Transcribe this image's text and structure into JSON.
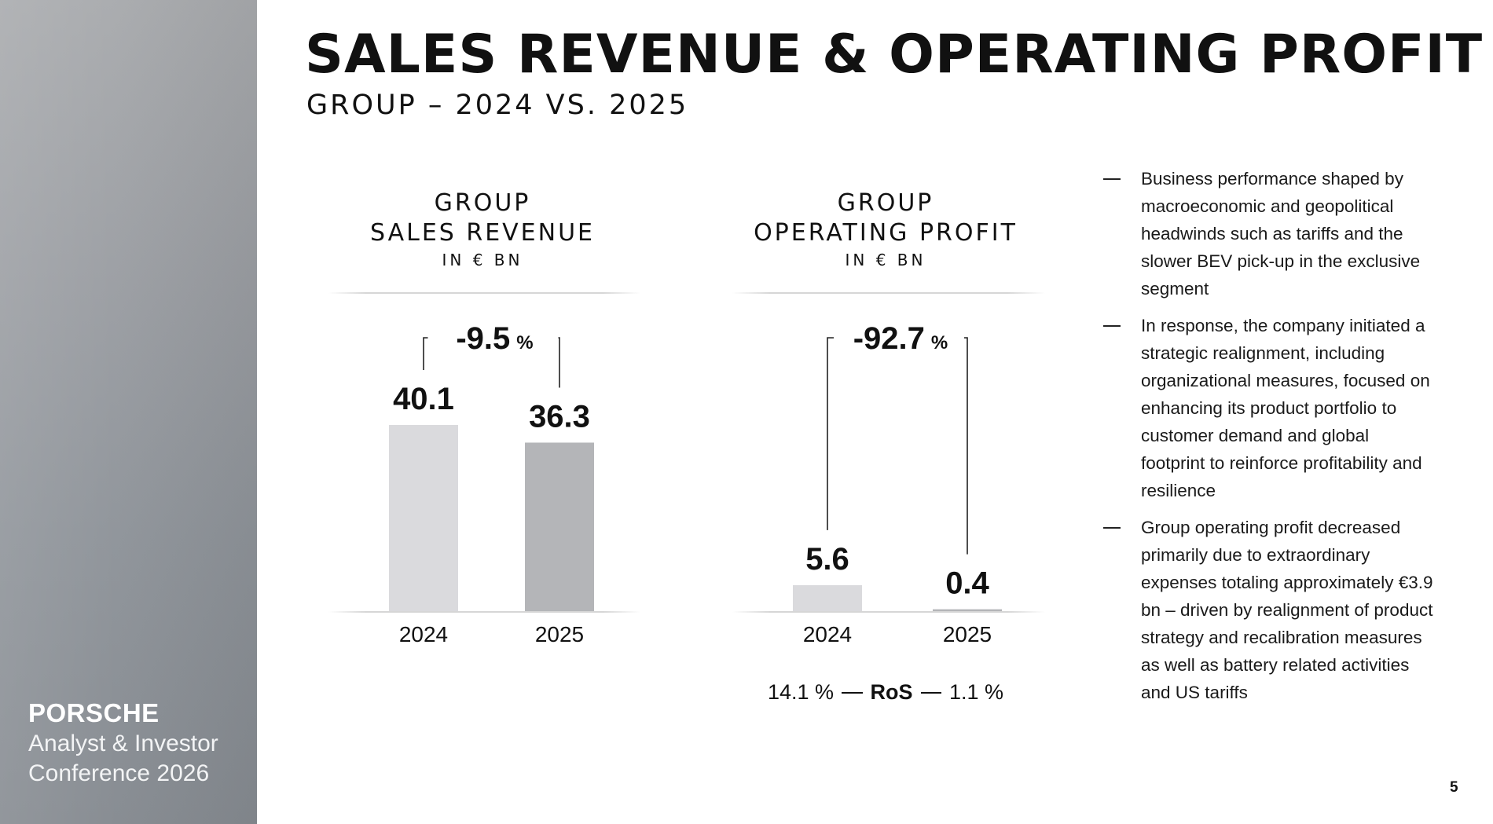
{
  "slide": {
    "title": "SALES REVENUE & OPERATING PROFIT",
    "subtitle": "GROUP – 2024 VS. 2025",
    "page_number": "5"
  },
  "brand": {
    "name": "PORSCHE",
    "event_line1": "Analyst & Investor",
    "event_line2": "Conference 2026"
  },
  "chart_data": [
    {
      "type": "bar",
      "title_line1": "GROUP",
      "title_line2": "SALES REVENUE",
      "unit": "IN € BN",
      "categories": [
        "2024",
        "2025"
      ],
      "values": [
        40.1,
        36.3
      ],
      "value_labels": [
        "40.1",
        "36.3"
      ],
      "change": "-9.5",
      "change_unit": "%",
      "bar_colors": [
        "#dadadd",
        "#b4b5b8"
      ],
      "grid": false
    },
    {
      "type": "bar",
      "title_line1": "GROUP",
      "title_line2": "OPERATING PROFIT",
      "unit": "IN € BN",
      "categories": [
        "2024",
        "2025"
      ],
      "values": [
        5.6,
        0.4
      ],
      "value_labels": [
        "5.6",
        "0.4"
      ],
      "change": "-92.7",
      "change_unit": "%",
      "bar_colors": [
        "#dadadd",
        "#b4b5b8"
      ],
      "grid": false,
      "ros": {
        "left": "14.1 %",
        "label": "RoS",
        "right": "1.1 %"
      }
    }
  ],
  "bullets": [
    "Business performance shaped by macroeconomic and geopolitical headwinds such as tariffs and the slower BEV pick-up in the exclusive segment",
    "In response, the company initiated a strategic realignment, including organizational measures, focused on enhancing its product portfolio to customer demand and global footprint to reinforce profitability and resilience",
    "Group operating profit decreased primarily due to extraordinary expenses totaling approximately €3.9 bn – driven by realignment of product strategy and recalibration measures as well as battery related activities and US tariffs"
  ]
}
